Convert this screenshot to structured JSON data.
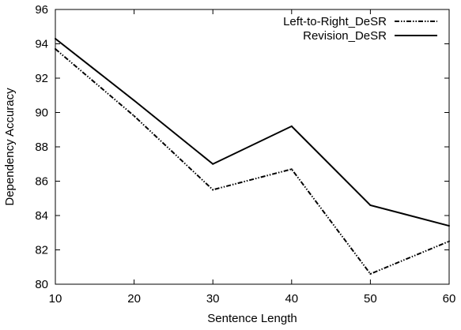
{
  "chart_data": {
    "type": "line",
    "title": "",
    "xlabel": "Sentence Length",
    "ylabel": "Dependency Accuracy",
    "xlim": [
      10,
      60
    ],
    "ylim": [
      80,
      96
    ],
    "xticks": [
      10,
      20,
      30,
      40,
      50,
      60
    ],
    "yticks": [
      80,
      82,
      84,
      86,
      88,
      90,
      92,
      94,
      96
    ],
    "grid": false,
    "legend_position": "top-right",
    "x": [
      10,
      20,
      30,
      40,
      50,
      60
    ],
    "series": [
      {
        "name": "Left-to-Right_DeSR",
        "style": "dash-dot-dot",
        "color": "#000000",
        "values": [
          93.7,
          89.8,
          85.5,
          86.7,
          80.6,
          82.5
        ]
      },
      {
        "name": "Revision_DeSR",
        "style": "solid",
        "color": "#000000",
        "values": [
          94.3,
          90.7,
          87.0,
          89.2,
          84.6,
          83.4
        ]
      }
    ]
  }
}
